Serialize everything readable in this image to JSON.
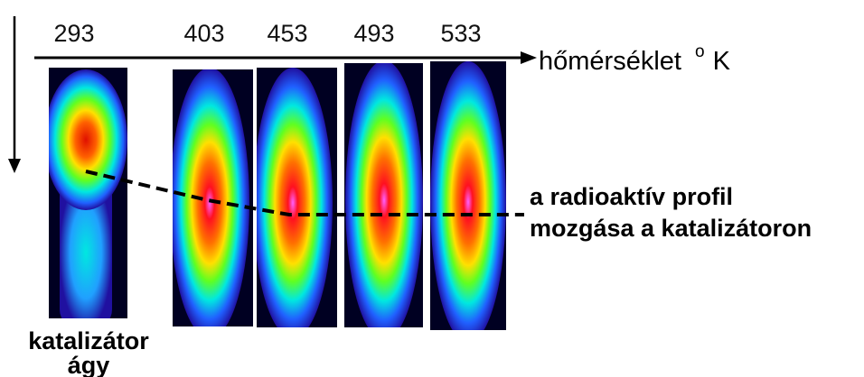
{
  "temperatures": [
    "293",
    "403",
    "453",
    "493",
    "533"
  ],
  "x_axis": {
    "label": "hőmérséklet",
    "degree": "o",
    "unit": "K"
  },
  "annotation": {
    "line1": "a radioaktív profil",
    "line2": "mozgása a katalizátoron"
  },
  "bed_label": {
    "line1": "katalizátor",
    "line2": "ágy"
  },
  "colors": {
    "background": "#000022",
    "outer": "#2020e0",
    "mid": "#00e0e0",
    "green": "#40ff40",
    "yellow": "#ffff00",
    "orange": "#ff8000",
    "red": "#ff0000",
    "core": "#ff40ff",
    "line": "#000000"
  }
}
